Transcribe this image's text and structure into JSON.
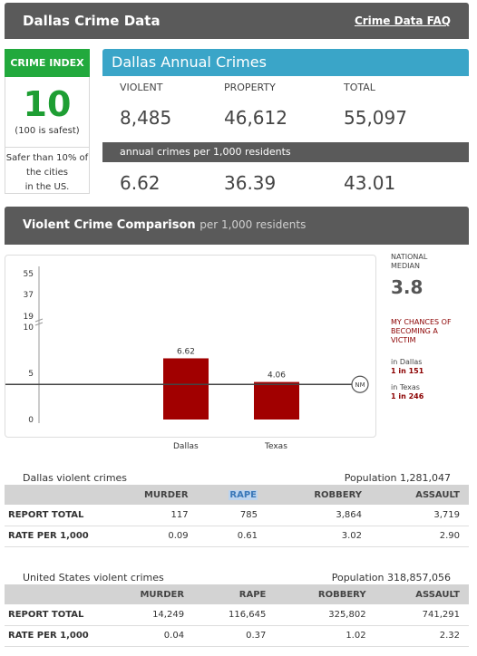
{
  "header": {
    "title": "Dallas Crime Data",
    "faq_link": "Crime Data FAQ"
  },
  "crime_index": {
    "label": "CRIME INDEX",
    "value": "10",
    "note": "(100 is safest)",
    "comparison": [
      "Safer than 10% of",
      "the cities",
      "in the US."
    ]
  },
  "annual": {
    "title": "Dallas Annual Crimes",
    "columns": [
      {
        "label": "VIOLENT",
        "value": "8,485",
        "rate": "6.62"
      },
      {
        "label": "PROPERTY",
        "value": "46,612",
        "rate": "36.39"
      },
      {
        "label": "TOTAL",
        "value": "55,097",
        "rate": "43.01"
      }
    ],
    "rate_label": "annual crimes per 1,000 residents"
  },
  "comparison": {
    "title": "Violent Crime Comparison",
    "subtitle": "per 1,000 residents"
  },
  "chart_data": {
    "type": "bar",
    "categories": [
      "Dallas",
      "Texas"
    ],
    "values": [
      6.62,
      4.06
    ],
    "value_labels": [
      "6.62",
      "4.06"
    ],
    "y_ticks": [
      0,
      5,
      10,
      19,
      37,
      55
    ],
    "y_tick_labels": [
      "0",
      "5",
      "10",
      "19",
      "37",
      "55"
    ],
    "y_axis_break": true,
    "national_median": 3.8,
    "median_marker_label": "NM",
    "bar_color": "#a10000",
    "grid": false
  },
  "side": {
    "national_median_label": [
      "NATIONAL",
      "MEDIAN"
    ],
    "national_median_value": "3.8",
    "chances_label": [
      "MY CHANCES OF",
      "BECOMING A",
      "VICTIM"
    ],
    "in_dallas": "in Dallas",
    "dallas_odds": "1 in 151",
    "in_texas": "in Texas",
    "texas_odds": "1 in 246"
  },
  "dallas_table": {
    "title": "Dallas violent crimes",
    "population": "Population 1,281,047",
    "headers": [
      "",
      "MURDER",
      "RAPE",
      "ROBBERY",
      "ASSAULT"
    ],
    "rows": [
      [
        "REPORT TOTAL",
        "117",
        "785",
        "3,864",
        "3,719"
      ],
      [
        "RATE PER 1,000",
        "0.09",
        "0.61",
        "3.02",
        "2.90"
      ]
    ]
  },
  "us_table": {
    "title": "United States violent crimes",
    "population": "Population 318,857,056",
    "headers": [
      "",
      "MURDER",
      "RAPE",
      "ROBBERY",
      "ASSAULT"
    ],
    "rows": [
      [
        "REPORT TOTAL",
        "14,249",
        "116,645",
        "325,802",
        "741,291"
      ],
      [
        "RATE PER 1,000",
        "0.04",
        "0.37",
        "1.02",
        "2.32"
      ]
    ]
  }
}
